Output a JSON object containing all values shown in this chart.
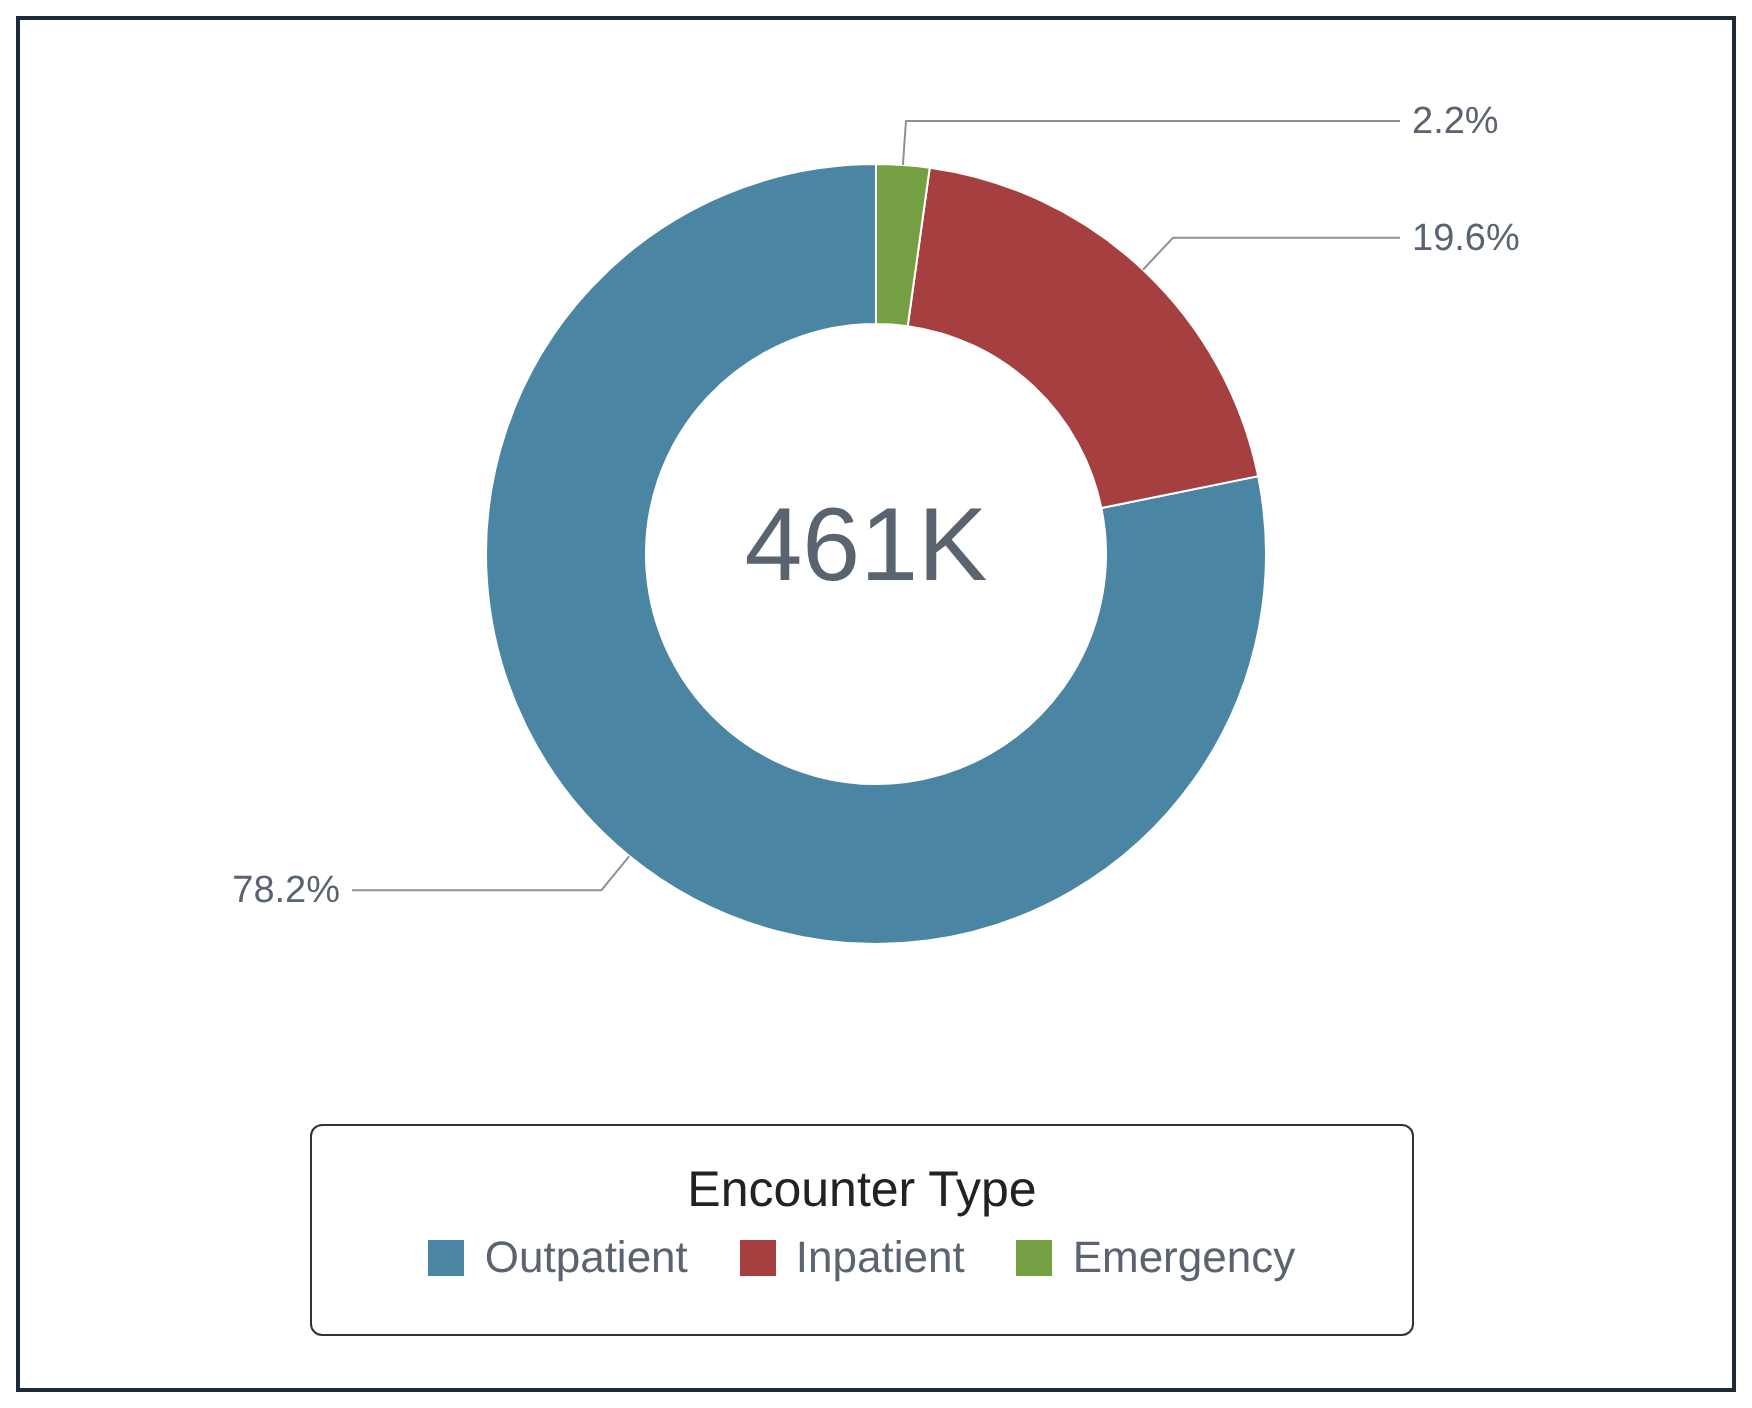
{
  "chart_data": {
    "type": "donut",
    "legend_title": "Encounter Type",
    "legend": "bottom",
    "categories": [
      "Outpatient",
      "Inpatient",
      "Emergency"
    ],
    "values": [
      78.2,
      19.6,
      2.2
    ],
    "value_labels": [
      "78.2%",
      "19.6%",
      "2.2%"
    ],
    "colors": [
      "#4a86a3",
      "#a63f3f",
      "#74a043"
    ],
    "annotations": [
      "461K"
    ]
  }
}
